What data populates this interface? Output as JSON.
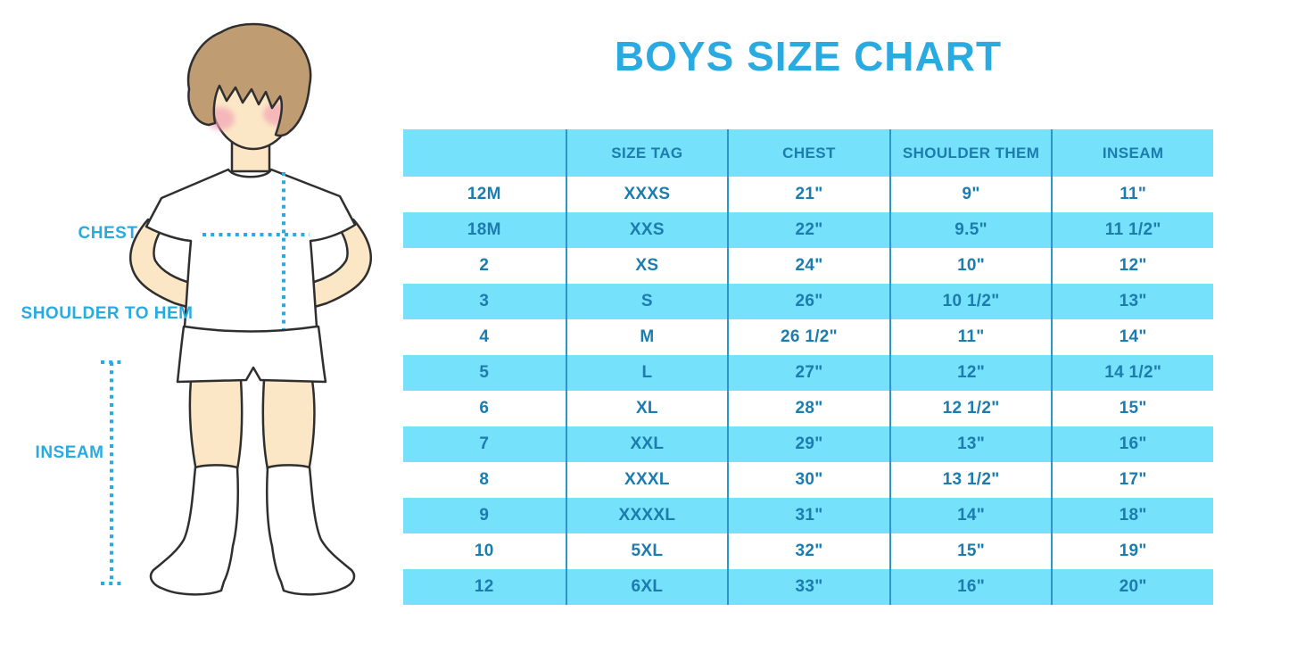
{
  "title": "BOYS SIZE CHART",
  "figure_labels": {
    "chest": "CHEST",
    "shoulder_to_hem": "SHOULDER TO HEM",
    "inseam": "INSEAM"
  },
  "colors": {
    "accent_blue": "#29ABE2",
    "table_text": "#1C7CAE",
    "row_cyan": "#75E1FA",
    "column_divider": "#2C96C8",
    "skin": "#FBE7C6",
    "hair": "#BF9C72",
    "cheek": "#F2A0B4",
    "outline": "#2F2F2F"
  },
  "chart_data": {
    "type": "table",
    "title": "BOYS SIZE CHART",
    "columns": [
      "",
      "SIZE TAG",
      "CHEST",
      "SHOULDER THEM",
      "INSEAM"
    ],
    "rows": [
      [
        "12M",
        "XXXS",
        "21\"",
        "9\"",
        "11\""
      ],
      [
        "18M",
        "XXS",
        "22\"",
        "9.5\"",
        "11 1/2\""
      ],
      [
        "2",
        "XS",
        "24\"",
        "10\"",
        "12\""
      ],
      [
        "3",
        "S",
        "26\"",
        "10 1/2\"",
        "13\""
      ],
      [
        "4",
        "M",
        "26 1/2\"",
        "11\"",
        "14\""
      ],
      [
        "5",
        "L",
        "27\"",
        "12\"",
        "14 1/2\""
      ],
      [
        "6",
        "XL",
        "28\"",
        "12 1/2\"",
        "15\""
      ],
      [
        "7",
        "XXL",
        "29\"",
        "13\"",
        "16\""
      ],
      [
        "8",
        "XXXL",
        "30\"",
        "13 1/2\"",
        "17\""
      ],
      [
        "9",
        "XXXXL",
        "31\"",
        "14\"",
        "18\""
      ],
      [
        "10",
        "5XL",
        "32\"",
        "15\"",
        "19\""
      ],
      [
        "12",
        "6XL",
        "33\"",
        "16\"",
        "20\""
      ]
    ]
  }
}
